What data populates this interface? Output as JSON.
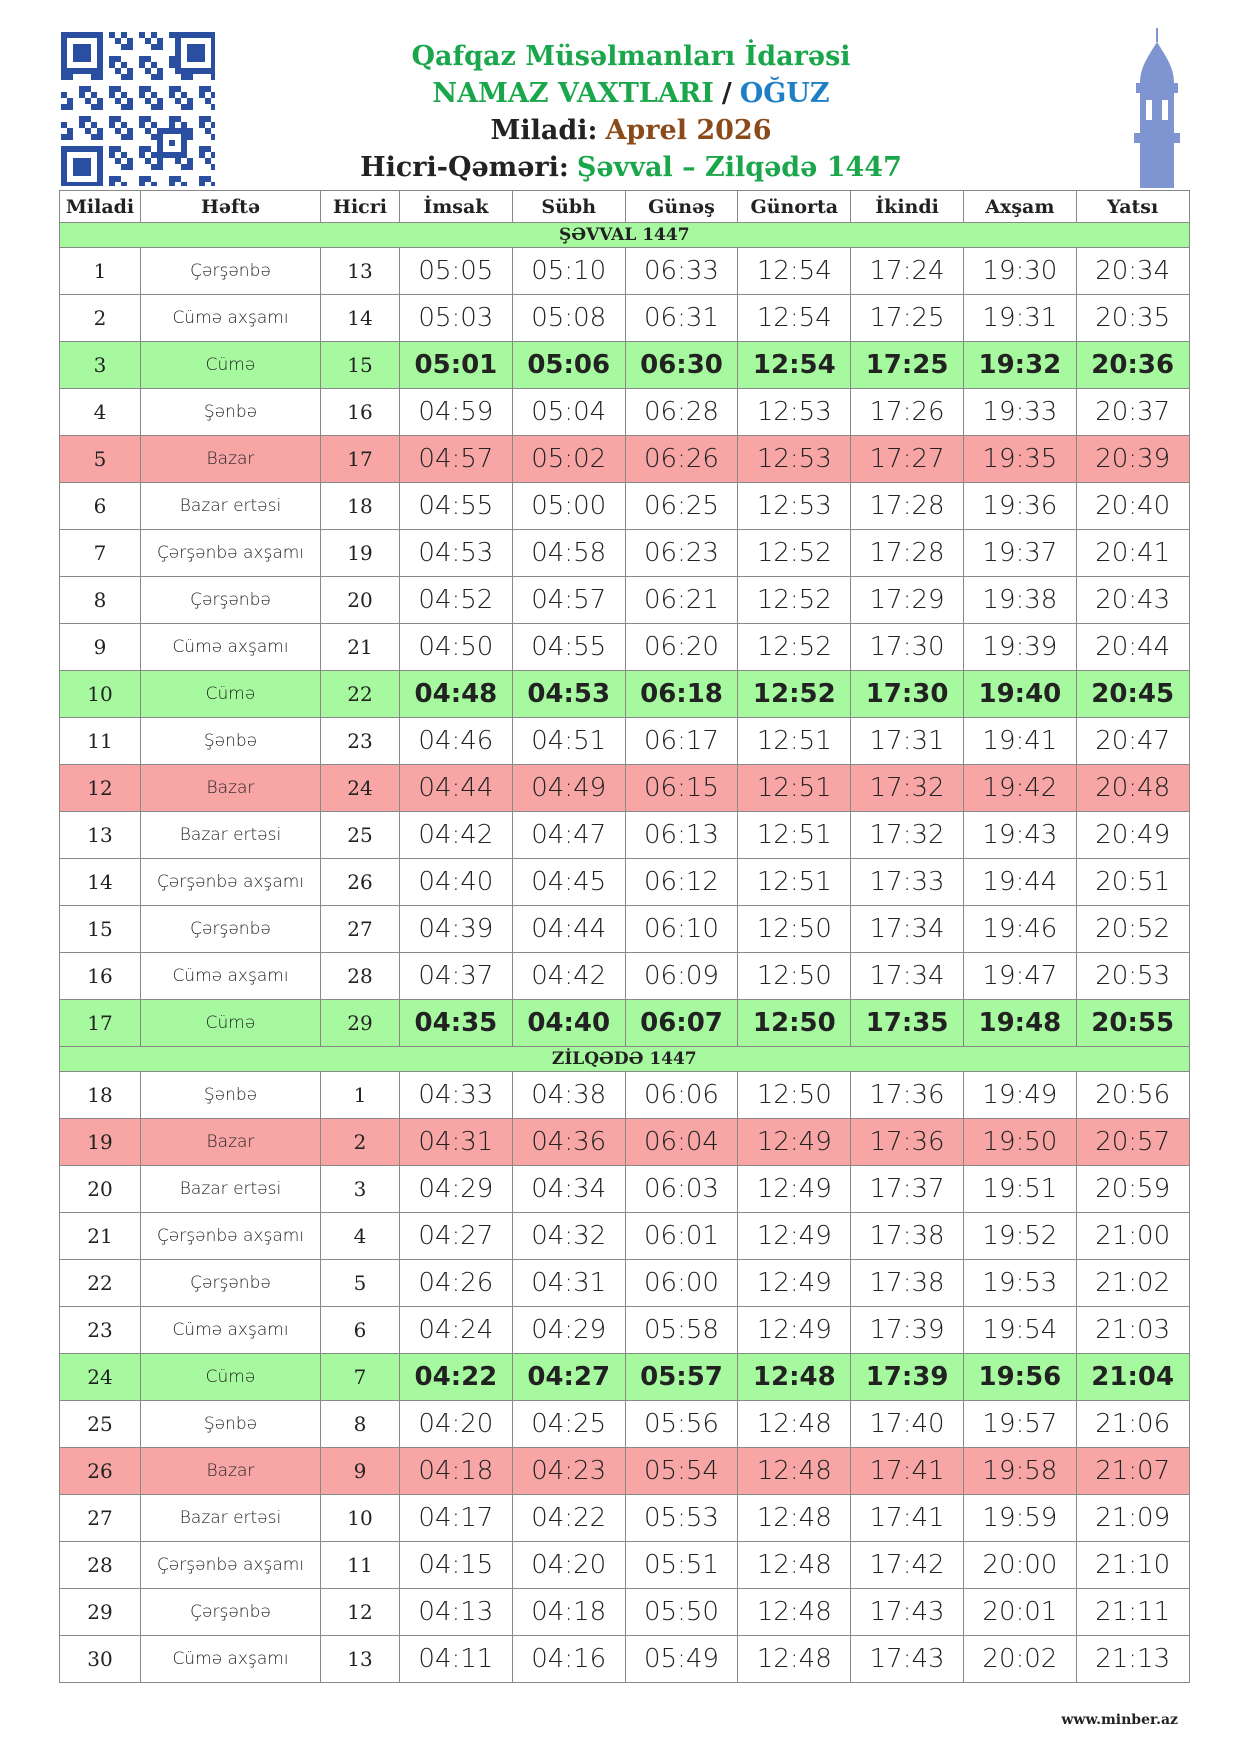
{
  "header": {
    "lines": [
      [
        {
          "text": "Qafqaz Müsəlmanları İdarəsi",
          "color": "#1aa64a"
        }
      ],
      [
        {
          "text": "NAMAZ VAXTLARI",
          "color": "#1aa64a"
        },
        {
          "text": "/",
          "color": "#222222"
        },
        {
          "text": "OĞUZ",
          "color": "#1f7fc6"
        }
      ],
      [
        {
          "text": "Miladi:",
          "color": "#222222"
        },
        {
          "text": "Aprel 2026",
          "color": "#8a4a1a"
        }
      ],
      [
        {
          "text": "Hicri-Qəməri:",
          "color": "#222222"
        },
        {
          "text": "Şəvval – Zilqədə 1447",
          "color": "#1aa64a"
        }
      ]
    ]
  },
  "table": {
    "columns": [
      "Miladi",
      "Həftə",
      "Hicri",
      "İmsak",
      "Sübh",
      "Günəş",
      "Günorta",
      "İkindi",
      "Axşam",
      "Yatsı"
    ],
    "sections": [
      {
        "title": "ŞƏVVAL 1447",
        "fill": "#a6f99e",
        "rows": [
          {
            "cells": [
              1,
              "Çərşənbə",
              13,
              "05:05",
              "05:10",
              "06:33",
              "12:54",
              "17:24",
              "19:30",
              "20:34"
            ],
            "fill": "#ffffff"
          },
          {
            "cells": [
              2,
              "Cümə axşamı",
              14,
              "05:03",
              "05:08",
              "06:31",
              "12:54",
              "17:25",
              "19:31",
              "20:35"
            ],
            "fill": "#ffffff"
          },
          {
            "cells": [
              3,
              "Cümə",
              15,
              "05:01",
              "05:06",
              "06:30",
              "12:54",
              "17:25",
              "19:32",
              "20:36"
            ],
            "fill": "#a6f99e",
            "bold": true
          },
          {
            "cells": [
              4,
              "Şənbə",
              16,
              "04:59",
              "05:04",
              "06:28",
              "12:53",
              "17:26",
              "19:33",
              "20:37"
            ],
            "fill": "#ffffff"
          },
          {
            "cells": [
              5,
              "Bazar",
              17,
              "04:57",
              "05:02",
              "06:26",
              "12:53",
              "17:27",
              "19:35",
              "20:39"
            ],
            "fill": "#f7a5a5"
          },
          {
            "cells": [
              6,
              "Bazar ertəsi",
              18,
              "04:55",
              "05:00",
              "06:25",
              "12:53",
              "17:28",
              "19:36",
              "20:40"
            ],
            "fill": "#ffffff"
          },
          {
            "cells": [
              7,
              "Çərşənbə axşamı",
              19,
              "04:53",
              "04:58",
              "06:23",
              "12:52",
              "17:28",
              "19:37",
              "20:41"
            ],
            "fill": "#ffffff"
          },
          {
            "cells": [
              8,
              "Çərşənbə",
              20,
              "04:52",
              "04:57",
              "06:21",
              "12:52",
              "17:29",
              "19:38",
              "20:43"
            ],
            "fill": "#ffffff"
          },
          {
            "cells": [
              9,
              "Cümə axşamı",
              21,
              "04:50",
              "04:55",
              "06:20",
              "12:52",
              "17:30",
              "19:39",
              "20:44"
            ],
            "fill": "#ffffff"
          },
          {
            "cells": [
              10,
              "Cümə",
              22,
              "04:48",
              "04:53",
              "06:18",
              "12:52",
              "17:30",
              "19:40",
              "20:45"
            ],
            "fill": "#a6f99e",
            "bold": true
          },
          {
            "cells": [
              11,
              "Şənbə",
              23,
              "04:46",
              "04:51",
              "06:17",
              "12:51",
              "17:31",
              "19:41",
              "20:47"
            ],
            "fill": "#ffffff"
          },
          {
            "cells": [
              12,
              "Bazar",
              24,
              "04:44",
              "04:49",
              "06:15",
              "12:51",
              "17:32",
              "19:42",
              "20:48"
            ],
            "fill": "#f7a5a5"
          },
          {
            "cells": [
              13,
              "Bazar ertəsi",
              25,
              "04:42",
              "04:47",
              "06:13",
              "12:51",
              "17:32",
              "19:43",
              "20:49"
            ],
            "fill": "#ffffff"
          },
          {
            "cells": [
              14,
              "Çərşənbə axşamı",
              26,
              "04:40",
              "04:45",
              "06:12",
              "12:51",
              "17:33",
              "19:44",
              "20:51"
            ],
            "fill": "#ffffff"
          },
          {
            "cells": [
              15,
              "Çərşənbə",
              27,
              "04:39",
              "04:44",
              "06:10",
              "12:50",
              "17:34",
              "19:46",
              "20:52"
            ],
            "fill": "#ffffff"
          },
          {
            "cells": [
              16,
              "Cümə axşamı",
              28,
              "04:37",
              "04:42",
              "06:09",
              "12:50",
              "17:34",
              "19:47",
              "20:53"
            ],
            "fill": "#ffffff"
          },
          {
            "cells": [
              17,
              "Cümə",
              29,
              "04:35",
              "04:40",
              "06:07",
              "12:50",
              "17:35",
              "19:48",
              "20:55"
            ],
            "fill": "#a6f99e",
            "bold": true
          }
        ]
      },
      {
        "title": "ZİLQƏDƏ 1447",
        "fill": "#a6f99e",
        "rows": [
          {
            "cells": [
              18,
              "Şənbə",
              1,
              "04:33",
              "04:38",
              "06:06",
              "12:50",
              "17:36",
              "19:49",
              "20:56"
            ],
            "fill": "#ffffff"
          },
          {
            "cells": [
              19,
              "Bazar",
              2,
              "04:31",
              "04:36",
              "06:04",
              "12:49",
              "17:36",
              "19:50",
              "20:57"
            ],
            "fill": "#f7a5a5"
          },
          {
            "cells": [
              20,
              "Bazar ertəsi",
              3,
              "04:29",
              "04:34",
              "06:03",
              "12:49",
              "17:37",
              "19:51",
              "20:59"
            ],
            "fill": "#ffffff"
          },
          {
            "cells": [
              21,
              "Çərşənbə axşamı",
              4,
              "04:27",
              "04:32",
              "06:01",
              "12:49",
              "17:38",
              "19:52",
              "21:00"
            ],
            "fill": "#ffffff"
          },
          {
            "cells": [
              22,
              "Çərşənbə",
              5,
              "04:26",
              "04:31",
              "06:00",
              "12:49",
              "17:38",
              "19:53",
              "21:02"
            ],
            "fill": "#ffffff"
          },
          {
            "cells": [
              23,
              "Cümə axşamı",
              6,
              "04:24",
              "04:29",
              "05:58",
              "12:49",
              "17:39",
              "19:54",
              "21:03"
            ],
            "fill": "#ffffff"
          },
          {
            "cells": [
              24,
              "Cümə",
              7,
              "04:22",
              "04:27",
              "05:57",
              "12:48",
              "17:39",
              "19:56",
              "21:04"
            ],
            "fill": "#a6f99e",
            "bold": true
          },
          {
            "cells": [
              25,
              "Şənbə",
              8,
              "04:20",
              "04:25",
              "05:56",
              "12:48",
              "17:40",
              "19:57",
              "21:06"
            ],
            "fill": "#ffffff"
          },
          {
            "cells": [
              26,
              "Bazar",
              9,
              "04:18",
              "04:23",
              "05:54",
              "12:48",
              "17:41",
              "19:58",
              "21:07"
            ],
            "fill": "#f7a5a5"
          },
          {
            "cells": [
              27,
              "Bazar ertəsi",
              10,
              "04:17",
              "04:22",
              "05:53",
              "12:48",
              "17:41",
              "19:59",
              "21:09"
            ],
            "fill": "#ffffff"
          },
          {
            "cells": [
              28,
              "Çərşənbə axşamı",
              11,
              "04:15",
              "04:20",
              "05:51",
              "12:48",
              "17:42",
              "20:00",
              "21:10"
            ],
            "fill": "#ffffff"
          },
          {
            "cells": [
              29,
              "Çərşənbə",
              12,
              "04:13",
              "04:18",
              "05:50",
              "12:48",
              "17:43",
              "20:01",
              "21:11"
            ],
            "fill": "#ffffff"
          },
          {
            "cells": [
              30,
              "Cümə axşamı",
              13,
              "04:11",
              "04:16",
              "05:49",
              "12:48",
              "17:43",
              "20:02",
              "21:13"
            ],
            "fill": "#ffffff"
          }
        ]
      }
    ]
  },
  "footer": {
    "text": "www.minber.az"
  }
}
